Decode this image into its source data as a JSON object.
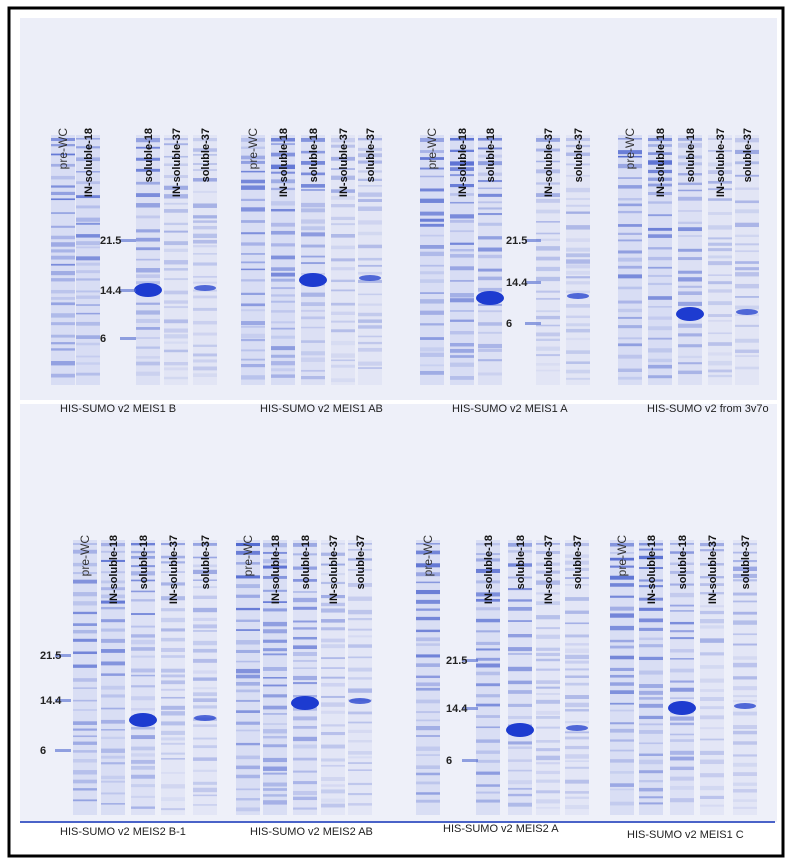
{
  "gels": [
    {
      "lanes": [
        "pre-WC",
        "IN-soluble-18",
        "soluble-18",
        "IN-soluble-37",
        "soluble-37"
      ],
      "markers": [
        "21.5",
        "14.4",
        "6"
      ],
      "caption": "HIS-SUMO v2 MEIS1 B"
    },
    {
      "lanes": [
        "pre-WC",
        "IN-soluble-18",
        "soluble-18",
        "IN-soluble-37",
        "soluble-37"
      ],
      "caption": "HIS-SUMO v2 MEIS1 AB"
    },
    {
      "lanes": [
        "pre-WC",
        "IN-soluble-18",
        "soluble-18",
        "IN-soluble-37",
        "soluble-37"
      ],
      "markers": [
        "21.5",
        "14.4",
        "6"
      ],
      "caption": "HIS-SUMO v2 MEIS1 A"
    },
    {
      "lanes": [
        "pre-WC",
        "IN-soluble-18",
        "soluble-18",
        "IN-soluble-37",
        "soluble-37"
      ],
      "caption": "HIS-SUMO v2 from 3v7o"
    },
    {
      "lanes": [
        "pre-WC",
        "IN-soluble-18",
        "soluble-18",
        "IN-soluble-37",
        "soluble-37"
      ],
      "markers": [
        "21.5",
        "14.4",
        "6"
      ],
      "caption": "HIS-SUMO v2 MEIS2 B-1"
    },
    {
      "lanes": [
        "pre-WC",
        "IN-soluble-18",
        "soluble-18",
        "IN-soluble-37",
        "soluble-37"
      ],
      "caption": "HIS-SUMO v2 MEIS2 AB"
    },
    {
      "lanes": [
        "pre-WC",
        "IN-soluble-18",
        "soluble-18",
        "IN-soluble-37",
        "soluble-37"
      ],
      "markers": [
        "21.5",
        "14.4",
        "6"
      ],
      "caption": "HIS-SUMO v2 MEIS2 A"
    },
    {
      "lanes": [
        "pre-WC",
        "IN-soluble-18",
        "soluble-18",
        "IN-soluble-37",
        "soluble-37"
      ],
      "caption": "HIS-SUMO v2 MEIS1 C"
    }
  ]
}
